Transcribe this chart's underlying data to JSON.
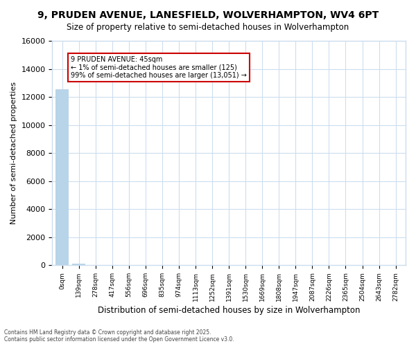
{
  "title": "9, PRUDEN AVENUE, LANESFIELD, WOLVERHAMPTON, WV4 6PT",
  "subtitle": "Size of property relative to semi-detached houses in Wolverhampton",
  "xlabel": "Distribution of semi-detached houses by size in Wolverhampton",
  "ylabel": "Number of semi-detached properties",
  "annotation_line1": "9 PRUDEN AVENUE: 45sqm",
  "annotation_line2": "← 1% of semi-detached houses are smaller (125)",
  "annotation_line3": "99% of semi-detached houses are larger (13,051) →",
  "categories": [
    "0sqm",
    "139sqm",
    "278sqm",
    "417sqm",
    "556sqm",
    "696sqm",
    "835sqm",
    "974sqm",
    "1113sqm",
    "1252sqm",
    "1391sqm",
    "1530sqm",
    "1669sqm",
    "1808sqm",
    "1947sqm",
    "2087sqm",
    "2226sqm",
    "2365sqm",
    "2504sqm",
    "2643sqm",
    "2782sqm"
  ],
  "values": [
    12560,
    125,
    10,
    5,
    3,
    2,
    2,
    1,
    1,
    1,
    1,
    1,
    1,
    1,
    0,
    0,
    0,
    0,
    0,
    0,
    0
  ],
  "bar_color": "#b8d4e8",
  "ylim": [
    0,
    16000
  ],
  "yticks": [
    0,
    2000,
    4000,
    6000,
    8000,
    10000,
    12000,
    14000,
    16000
  ],
  "background_color": "#ffffff",
  "grid_color": "#ccddee",
  "annotation_box_edgecolor": "#cc0000",
  "footer": "Contains HM Land Registry data © Crown copyright and database right 2025.\nContains public sector information licensed under the Open Government Licence v3.0."
}
